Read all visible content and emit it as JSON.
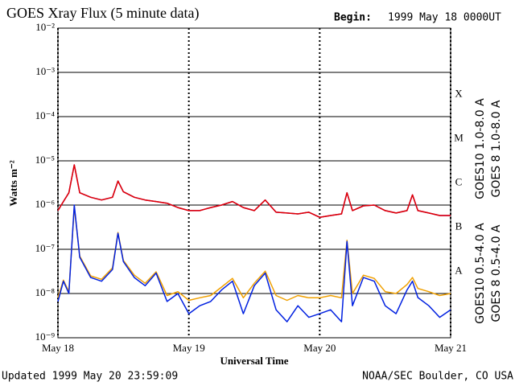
{
  "chart_data": {
    "type": "line",
    "title": "GOES Xray Flux (5 minute data)",
    "begin_label": "Begin:",
    "begin": "1999 May 18 0000UT",
    "updated": "Updated 1999 May 20 23:59:09",
    "credit": "NOAA/SEC Boulder, CO USA",
    "x_label": "Universal Time",
    "y_label": "Watts m⁻²",
    "flare_classes": [
      "X",
      "M",
      "C",
      "B",
      "A"
    ],
    "log_y": true,
    "grid": true,
    "xlim": [
      0,
      72
    ],
    "xticks": [
      {
        "value": 0,
        "label": "May 18"
      },
      {
        "value": 24,
        "label": "May 19"
      },
      {
        "value": 48,
        "label": "May 20"
      },
      {
        "value": 72,
        "label": "May 21"
      }
    ],
    "ylim": [
      1e-09,
      0.01
    ],
    "yticks": [
      {
        "value": 1e-09,
        "label": "10⁻⁹"
      },
      {
        "value": 1e-08,
        "label": "10⁻⁸"
      },
      {
        "value": 1e-07,
        "label": "10⁻⁷"
      },
      {
        "value": 1e-06,
        "label": "10⁻⁶"
      },
      {
        "value": 1e-05,
        "label": "10⁻⁵"
      },
      {
        "value": 0.0001,
        "label": "10⁻⁴"
      },
      {
        "value": 0.001,
        "label": "10⁻³"
      },
      {
        "value": 0.01,
        "label": "10⁻²"
      }
    ],
    "x": [
      0,
      1,
      2,
      3,
      4,
      6,
      8,
      10,
      11,
      12,
      14,
      16,
      18,
      20,
      22,
      24,
      26,
      28,
      30,
      32,
      34,
      36,
      38,
      40,
      42,
      44,
      46,
      48,
      50,
      52,
      53,
      54,
      56,
      58,
      60,
      62,
      64,
      65,
      66,
      68,
      70,
      72
    ],
    "series": [
      {
        "name": "GOES10 1.0-8.0 A",
        "color": "#8000c0",
        "values": [
          7.5e-07,
          1.2e-06,
          1.9e-06,
          8.1e-06,
          1.9e-06,
          1.5e-06,
          1.3e-06,
          1.5e-06,
          3.5e-06,
          2e-06,
          1.5e-06,
          1.3e-06,
          1.2e-06,
          1.1e-06,
          8.8e-07,
          7.5e-07,
          7.5e-07,
          8.8e-07,
          1e-06,
          1.2e-06,
          8.8e-07,
          7.5e-07,
          1.3e-06,
          6.9e-07,
          6.6e-07,
          6.3e-07,
          6.9e-07,
          5.3e-07,
          5.8e-07,
          6.3e-07,
          1.9e-06,
          7.5e-07,
          9.6e-07,
          1e-06,
          7.5e-07,
          6.6e-07,
          7.5e-07,
          1.7e-06,
          7.5e-07,
          6.6e-07,
          5.8e-07,
          5.8e-07
        ]
      },
      {
        "name": "GOES 8 1.0-8.0 A",
        "color": "#e00000",
        "values": [
          7.5e-07,
          1.2e-06,
          1.9e-06,
          8.1e-06,
          1.9e-06,
          1.5e-06,
          1.3e-06,
          1.5e-06,
          3.5e-06,
          2e-06,
          1.5e-06,
          1.3e-06,
          1.2e-06,
          1.1e-06,
          8.8e-07,
          7.5e-07,
          7.5e-07,
          8.8e-07,
          1e-06,
          1.2e-06,
          8.8e-07,
          7.5e-07,
          1.3e-06,
          6.9e-07,
          6.6e-07,
          6.3e-07,
          6.9e-07,
          5.3e-07,
          5.8e-07,
          6.3e-07,
          1.9e-06,
          7.5e-07,
          9.6e-07,
          1e-06,
          7.5e-07,
          6.6e-07,
          7.5e-07,
          1.7e-06,
          7.5e-07,
          6.6e-07,
          5.8e-07,
          5.8e-07
        ]
      },
      {
        "name": "GOES10 0.5-4.0 A",
        "color": "#f0a000",
        "values": [
          8e-09,
          2e-08,
          1.1e-08,
          9e-07,
          7e-08,
          2.5e-08,
          2.1e-08,
          3.8e-08,
          2.4e-07,
          5.6e-08,
          2.6e-08,
          1.7e-08,
          3.1e-08,
          9e-09,
          1.1e-08,
          7e-09,
          8e-09,
          9e-09,
          1.4e-08,
          2.2e-08,
          8e-09,
          1.7e-08,
          3.2e-08,
          9e-09,
          7e-09,
          9e-09,
          8e-09,
          8e-09,
          9e-09,
          8e-09,
          1.6e-07,
          1e-08,
          2.6e-08,
          2.2e-08,
          1.1e-08,
          1e-08,
          1.6e-08,
          2.3e-08,
          1.3e-08,
          1.1e-08,
          9e-09,
          1e-08
        ]
      },
      {
        "name": "GOES 8 0.5-4.0 A",
        "color": "#0020e0",
        "values": [
          6.6e-09,
          1.9e-08,
          1e-08,
          1e-06,
          6.6e-08,
          2.3e-08,
          1.9e-08,
          3.5e-08,
          2.3e-07,
          5.3e-08,
          2.3e-08,
          1.5e-08,
          2.9e-08,
          6.6e-09,
          1e-08,
          3.5e-09,
          5.3e-09,
          6.6e-09,
          1.2e-08,
          1.9e-08,
          3.5e-09,
          1.5e-08,
          2.9e-08,
          4.3e-09,
          2.3e-09,
          5.3e-09,
          2.9e-09,
          3.5e-09,
          4.3e-09,
          2.3e-09,
          1.5e-07,
          5.3e-09,
          2.3e-08,
          1.9e-08,
          5.3e-09,
          3.5e-09,
          1.2e-08,
          1.9e-08,
          8.1e-09,
          5.3e-09,
          2.9e-09,
          4.3e-09
        ]
      }
    ]
  }
}
